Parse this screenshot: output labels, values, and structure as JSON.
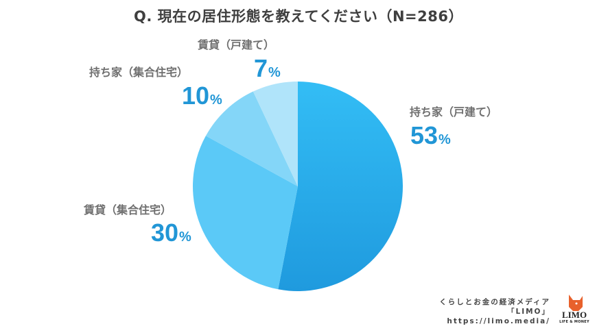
{
  "title": "Q. 現在の居住形態を教えてください（N=286）",
  "chart_data": {
    "type": "pie",
    "title": "Q. 現在の居住形態を教えてください（N=286）",
    "n": 286,
    "start_angle": "12 o'clock",
    "direction": "clockwise",
    "categories": [
      "持ち家（戸建て）",
      "賃貸（集合住宅）",
      "持ち家（集合住宅）",
      "賃貸（戸建て）"
    ],
    "values": [
      53,
      30,
      10,
      7
    ],
    "unit": "%",
    "colors": [
      "#29a8e8",
      "#5bc9f7",
      "#84d6f8",
      "#b0e4fa"
    ],
    "legend": "none (direct labels)"
  },
  "labels": [
    {
      "name": "持ち家（戸建て）",
      "num": "53",
      "sign": "%"
    },
    {
      "name": "賃貸（集合住宅）",
      "num": "30",
      "sign": "%"
    },
    {
      "name": "持ち家（集合住宅）",
      "num": "10",
      "sign": "%"
    },
    {
      "name": "賃貸（戸建て）",
      "num": "7",
      "sign": "%"
    }
  ],
  "credit": {
    "line1": "くらしとお金の経済メディア",
    "line2": "「LIMO」",
    "line3": "https://limo.media/"
  },
  "logo": {
    "text": "LIMO",
    "sub": "LIFE & MONEY",
    "color": "#e8612c"
  }
}
